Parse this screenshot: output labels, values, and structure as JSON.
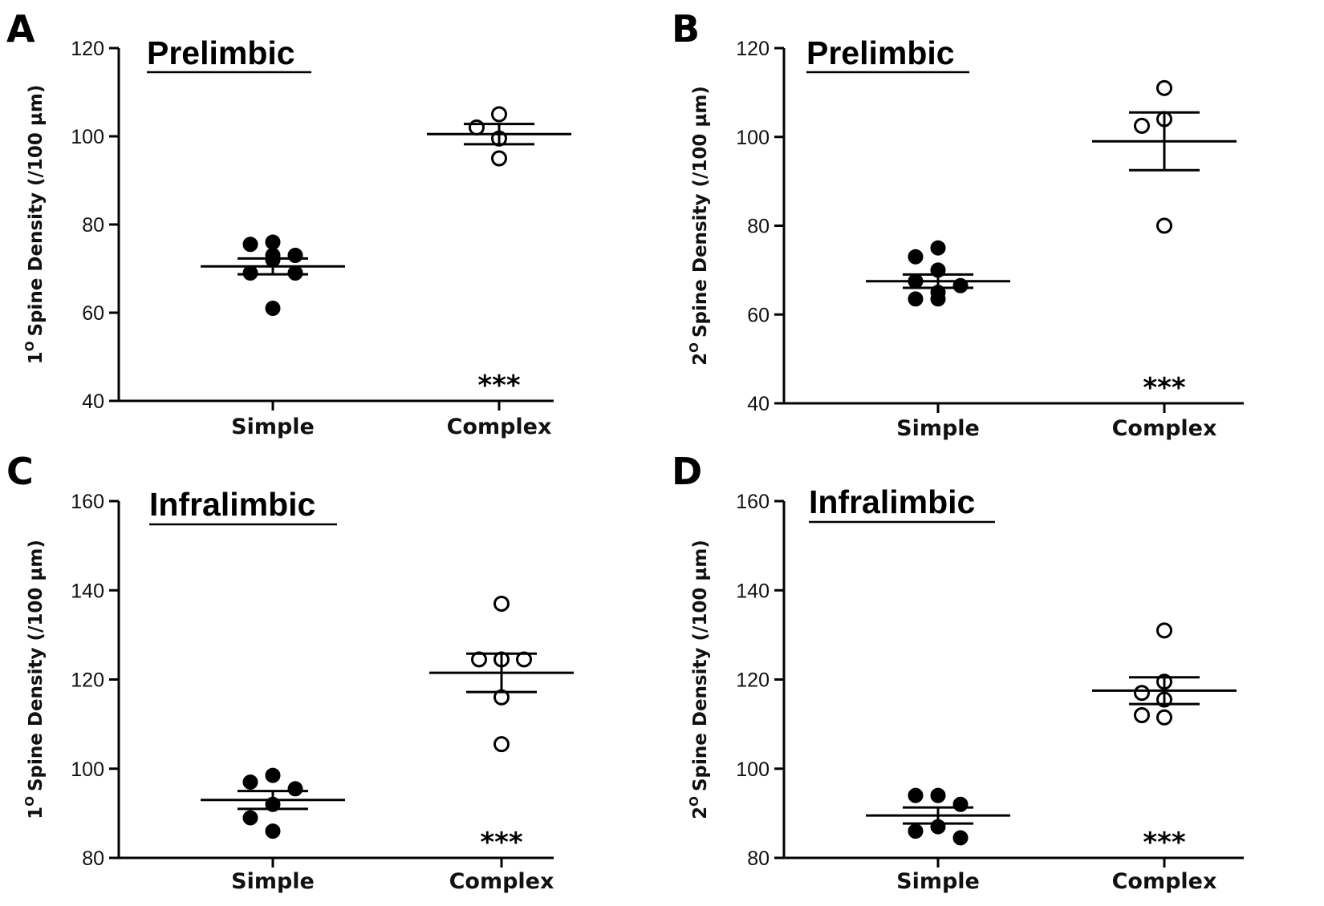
{
  "chart_data": [
    {
      "panel": "A",
      "type": "scatter",
      "title": "Prelimbic",
      "ylabel_sup": "O",
      "ylabel_num": "1",
      "ylabel": "Spine Density (/100 µm)",
      "ylim": [
        40,
        120
      ],
      "yticks": [
        40,
        60,
        80,
        100,
        120
      ],
      "categories": [
        "Simple",
        "Complex"
      ],
      "series": [
        {
          "name": "Simple",
          "marker": "filled",
          "values": [
            76,
            75.5,
            73,
            73,
            72,
            69,
            69,
            61
          ],
          "mean": 70.5,
          "sem": 1.8
        },
        {
          "name": "Complex",
          "marker": "open",
          "values": [
            105,
            102,
            99.5,
            95
          ],
          "mean": 100.5,
          "sem": 2.3
        }
      ],
      "significance": {
        "category": "Complex",
        "label": "***"
      }
    },
    {
      "panel": "B",
      "type": "scatter",
      "title": "Prelimbic",
      "ylabel_sup": "O",
      "ylabel_num": "2",
      "ylabel": "Spine Density (/100 µm)",
      "ylim": [
        40,
        120
      ],
      "yticks": [
        40,
        60,
        80,
        100,
        120
      ],
      "categories": [
        "Simple",
        "Complex"
      ],
      "series": [
        {
          "name": "Simple",
          "marker": "filled",
          "values": [
            75,
            73,
            70,
            67.5,
            66.5,
            65,
            63.5,
            63.5
          ],
          "mean": 67.5,
          "sem": 1.5
        },
        {
          "name": "Complex",
          "marker": "open",
          "values": [
            111,
            104,
            102.5,
            80
          ],
          "mean": 99,
          "sem": 6.5
        }
      ],
      "significance": {
        "category": "Complex",
        "label": "***"
      }
    },
    {
      "panel": "C",
      "type": "scatter",
      "title": "Infralimbic",
      "ylabel_sup": "O",
      "ylabel_num": "1",
      "ylabel": "Spine Density (/100 µm)",
      "ylim": [
        80,
        160
      ],
      "yticks": [
        80,
        100,
        120,
        140,
        160
      ],
      "categories": [
        "Simple",
        "Complex"
      ],
      "series": [
        {
          "name": "Simple",
          "marker": "filled",
          "values": [
            98.5,
            97,
            95.5,
            92,
            89,
            86
          ],
          "mean": 93,
          "sem": 2
        },
        {
          "name": "Complex",
          "marker": "open",
          "values": [
            137,
            124.5,
            124.5,
            124.5,
            116,
            105.5
          ],
          "mean": 121.5,
          "sem": 4.3
        }
      ],
      "significance": {
        "category": "Complex",
        "label": "***"
      }
    },
    {
      "panel": "D",
      "type": "scatter",
      "title": "Infralimbic",
      "ylabel_sup": "O",
      "ylabel_num": "2",
      "ylabel": "Spine Density (/100 µm)",
      "ylim": [
        80,
        160
      ],
      "yticks": [
        80,
        100,
        120,
        140,
        160
      ],
      "categories": [
        "Simple",
        "Complex"
      ],
      "series": [
        {
          "name": "Simple",
          "marker": "filled",
          "values": [
            94,
            94,
            92,
            87,
            86,
            84.5
          ],
          "mean": 89.5,
          "sem": 1.8
        },
        {
          "name": "Complex",
          "marker": "open",
          "values": [
            131,
            119.5,
            117,
            115.5,
            112,
            111.5
          ],
          "mean": 117.5,
          "sem": 3
        }
      ],
      "significance": {
        "category": "Complex",
        "label": "***"
      }
    }
  ]
}
